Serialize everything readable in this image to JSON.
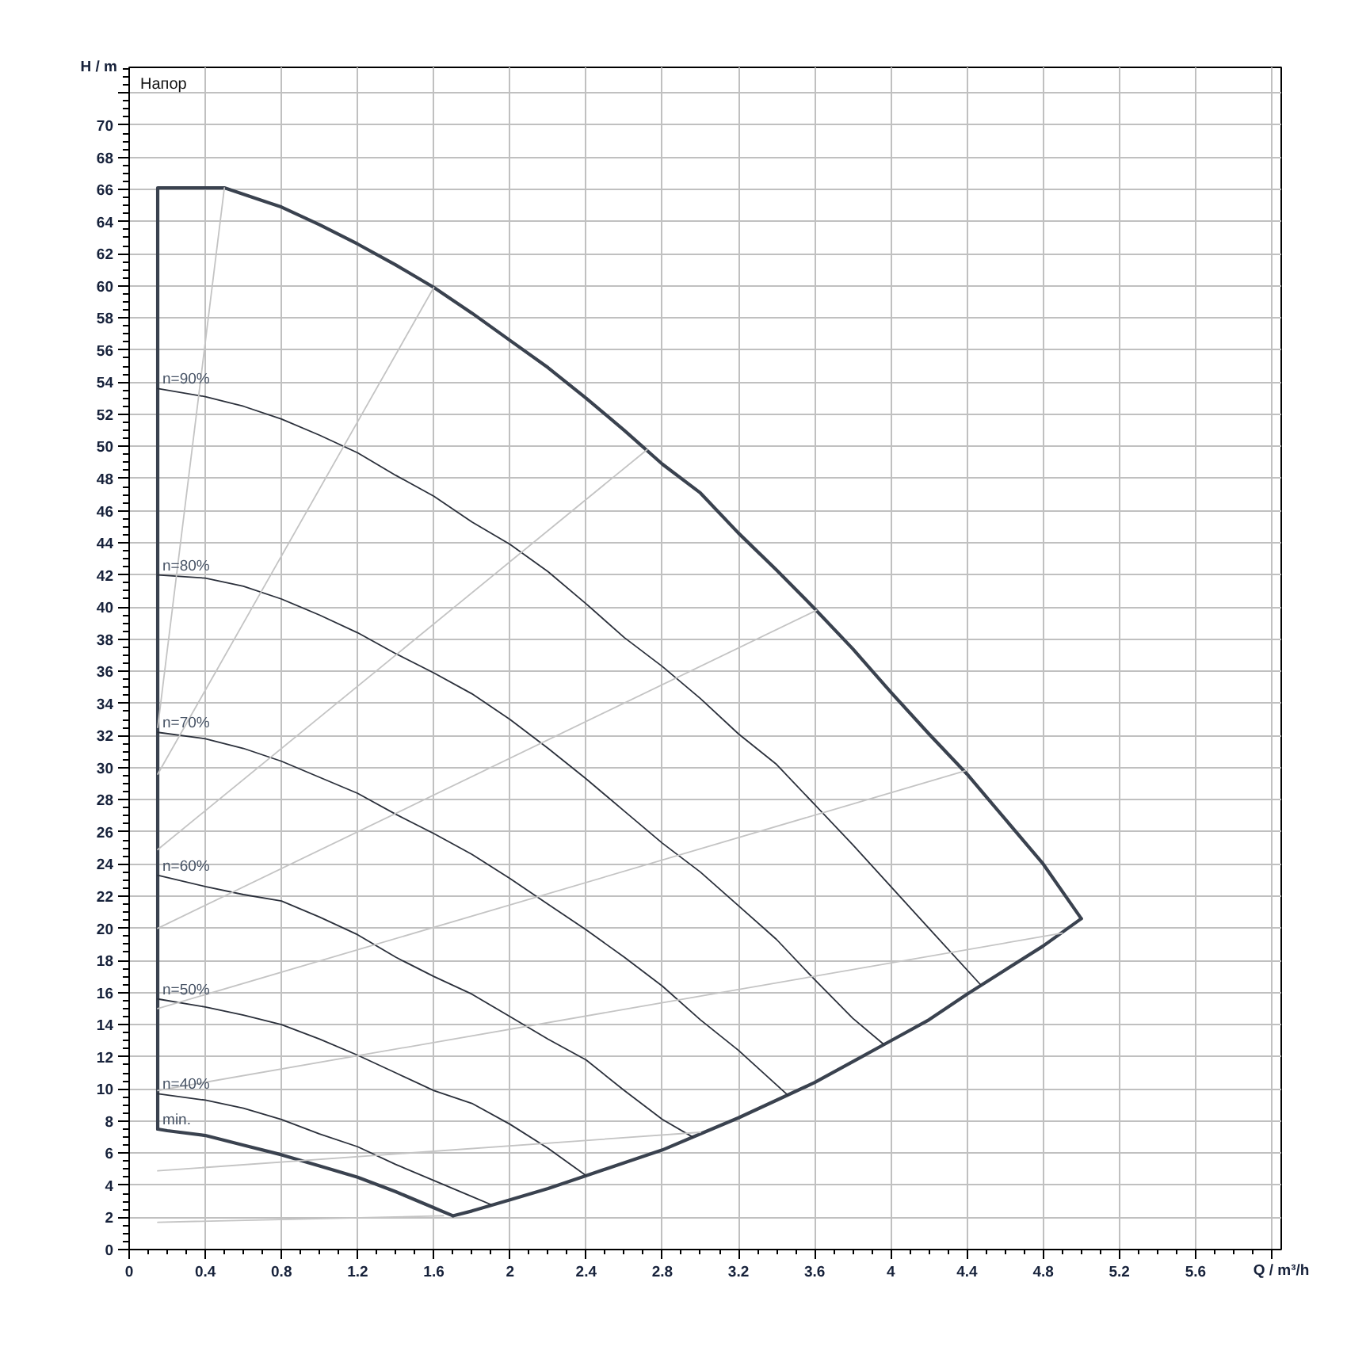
{
  "chart_data": {
    "type": "line",
    "xlabel": "Q / m³/h",
    "ylabel": "H / m",
    "annotations": [
      "Напор"
    ],
    "xlim": [
      0,
      6.05
    ],
    "ylim": [
      0,
      73.6
    ],
    "xticks": [
      0,
      {
        "value": 0.1,
        "label": null
      },
      {
        "value": 0.2,
        "label": null
      },
      {
        "value": 0.3,
        "label": null
      },
      0.4,
      {
        "value": 0.5,
        "label": null
      },
      {
        "value": 0.6,
        "label": null
      },
      {
        "value": 0.7,
        "label": null
      },
      0.8,
      {
        "value": 0.9,
        "label": null
      },
      {
        "value": 1,
        "label": null
      },
      {
        "value": 1.1,
        "label": null
      },
      1.2,
      {
        "value": 1.3,
        "label": null
      },
      {
        "value": 1.4,
        "label": null
      },
      {
        "value": 1.5,
        "label": null
      },
      1.6,
      {
        "value": 1.7,
        "label": null
      },
      {
        "value": 1.8,
        "label": null
      },
      {
        "value": 1.9,
        "label": null
      },
      2,
      {
        "value": 2.1,
        "label": null
      },
      {
        "value": 2.2,
        "label": null
      },
      {
        "value": 2.3,
        "label": null
      },
      2.4,
      {
        "value": 2.5,
        "label": null
      },
      {
        "value": 2.6,
        "label": null
      },
      {
        "value": 2.7,
        "label": null
      },
      2.8,
      {
        "value": 2.9,
        "label": null
      },
      {
        "value": 3,
        "label": null
      },
      {
        "value": 3.1,
        "label": null
      },
      3.2,
      {
        "value": 3.3,
        "label": null
      },
      {
        "value": 3.4,
        "label": null
      },
      {
        "value": 3.5,
        "label": null
      },
      3.6,
      {
        "value": 3.7,
        "label": null
      },
      {
        "value": 3.8,
        "label": null
      },
      {
        "value": 3.9,
        "label": null
      },
      4,
      {
        "value": 4.1,
        "label": null
      },
      {
        "value": 4.2,
        "label": null
      },
      {
        "value": 4.3,
        "label": null
      },
      4.4,
      {
        "value": 4.5,
        "label": null
      },
      {
        "value": 4.6,
        "label": null
      },
      {
        "value": 4.7,
        "label": null
      },
      4.8,
      {
        "value": 4.9,
        "label": null
      },
      {
        "value": 5,
        "label": null
      },
      {
        "value": 5.1,
        "label": null
      },
      5.2,
      {
        "value": 5.3,
        "label": null
      },
      {
        "value": 5.4,
        "label": null
      },
      {
        "value": 5.5,
        "label": null
      },
      5.6,
      {
        "value": 5.7,
        "label": null
      },
      {
        "value": 5.8,
        "label": null
      },
      {
        "value": 5.9,
        "label": null
      },
      {
        "value": 6,
        "label": null
      }
    ],
    "yticks": [
      0,
      {
        "value": 0.5,
        "label": null
      },
      {
        "value": 1,
        "label": null
      },
      {
        "value": 1.5,
        "label": null
      },
      2,
      {
        "value": 2.5,
        "label": null
      },
      {
        "value": 3,
        "label": null
      },
      {
        "value": 3.5,
        "label": null
      },
      4,
      {
        "value": 4.5,
        "label": null
      },
      {
        "value": 5,
        "label": null
      },
      {
        "value": 5.5,
        "label": null
      },
      6,
      {
        "value": 6.5,
        "label": null
      },
      {
        "value": 7,
        "label": null
      },
      {
        "value": 7.5,
        "label": null
      },
      8,
      {
        "value": 8.5,
        "label": null
      },
      {
        "value": 9,
        "label": null
      },
      {
        "value": 9.5,
        "label": null
      },
      10,
      {
        "value": 10.5,
        "label": null
      },
      {
        "value": 11,
        "label": null
      },
      {
        "value": 11.5,
        "label": null
      },
      12,
      {
        "value": 12.5,
        "label": null
      },
      {
        "value": 13,
        "label": null
      },
      {
        "value": 13.5,
        "label": null
      },
      14,
      {
        "value": 14.5,
        "label": null
      },
      {
        "value": 15,
        "label": null
      },
      {
        "value": 15.5,
        "label": null
      },
      16,
      {
        "value": 16.5,
        "label": null
      },
      {
        "value": 17,
        "label": null
      },
      {
        "value": 17.5,
        "label": null
      },
      18,
      {
        "value": 18.5,
        "label": null
      },
      {
        "value": 19,
        "label": null
      },
      {
        "value": 19.5,
        "label": null
      },
      20,
      {
        "value": 20.5,
        "label": null
      },
      {
        "value": 21,
        "label": null
      },
      {
        "value": 21.5,
        "label": null
      },
      22,
      {
        "value": 22.5,
        "label": null
      },
      {
        "value": 23,
        "label": null
      },
      {
        "value": 23.5,
        "label": null
      },
      24,
      {
        "value": 24.5,
        "label": null
      },
      {
        "value": 25,
        "label": null
      },
      {
        "value": 25.5,
        "label": null
      },
      26,
      {
        "value": 26.5,
        "label": null
      },
      {
        "value": 27,
        "label": null
      },
      {
        "value": 27.5,
        "label": null
      },
      28,
      {
        "value": 28.5,
        "label": null
      },
      {
        "value": 29,
        "label": null
      },
      {
        "value": 29.5,
        "label": null
      },
      30,
      {
        "value": 30.5,
        "label": null
      },
      {
        "value": 31,
        "label": null
      },
      {
        "value": 31.5,
        "label": null
      },
      32,
      {
        "value": 32.5,
        "label": null
      },
      {
        "value": 33,
        "label": null
      },
      {
        "value": 33.5,
        "label": null
      },
      34,
      {
        "value": 34.5,
        "label": null
      },
      {
        "value": 35,
        "label": null
      },
      {
        "value": 35.5,
        "label": null
      },
      36,
      {
        "value": 36.5,
        "label": null
      },
      {
        "value": 37,
        "label": null
      },
      {
        "value": 37.5,
        "label": null
      },
      38,
      {
        "value": 38.5,
        "label": null
      },
      {
        "value": 39,
        "label": null
      },
      {
        "value": 39.5,
        "label": null
      },
      40,
      {
        "value": 40.5,
        "label": null
      },
      {
        "value": 41,
        "label": null
      },
      {
        "value": 41.5,
        "label": null
      },
      42,
      {
        "value": 42.5,
        "label": null
      },
      {
        "value": 43,
        "label": null
      },
      {
        "value": 43.5,
        "label": null
      },
      44,
      {
        "value": 44.5,
        "label": null
      },
      {
        "value": 45,
        "label": null
      },
      {
        "value": 45.5,
        "label": null
      },
      46,
      {
        "value": 46.5,
        "label": null
      },
      {
        "value": 47,
        "label": null
      },
      {
        "value": 47.5,
        "label": null
      },
      48,
      {
        "value": 48.5,
        "label": null
      },
      {
        "value": 49,
        "label": null
      },
      {
        "value": 49.5,
        "label": null
      },
      50,
      {
        "value": 50.5,
        "label": null
      },
      {
        "value": 51,
        "label": null
      },
      {
        "value": 51.5,
        "label": null
      },
      52,
      {
        "value": 52.5,
        "label": null
      },
      {
        "value": 53,
        "label": null
      },
      {
        "value": 53.5,
        "label": null
      },
      54,
      {
        "value": 54.5,
        "label": null
      },
      {
        "value": 55,
        "label": null
      },
      {
        "value": 55.5,
        "label": null
      },
      56,
      {
        "value": 56.5,
        "label": null
      },
      {
        "value": 57,
        "label": null
      },
      {
        "value": 57.5,
        "label": null
      },
      58,
      {
        "value": 58.5,
        "label": null
      },
      {
        "value": 59,
        "label": null
      },
      {
        "value": 59.5,
        "label": null
      },
      60,
      {
        "value": 60.5,
        "label": null
      },
      {
        "value": 61,
        "label": null
      },
      {
        "value": 61.5,
        "label": null
      },
      62,
      {
        "value": 62.5,
        "label": null
      },
      {
        "value": 63,
        "label": null
      },
      {
        "value": 63.5,
        "label": null
      },
      64,
      {
        "value": 64.5,
        "label": null
      },
      {
        "value": 65,
        "label": null
      },
      {
        "value": 65.5,
        "label": null
      },
      66,
      {
        "value": 66.5,
        "label": null
      },
      {
        "value": 67,
        "label": null
      },
      {
        "value": 67.5,
        "label": null
      },
      68,
      {
        "value": 68.5,
        "label": null
      },
      {
        "value": 69,
        "label": null
      },
      {
        "value": 69.5,
        "label": null
      },
      70,
      {
        "value": 70.5,
        "label": null
      },
      {
        "value": 71,
        "label": null
      },
      {
        "value": 71.5,
        "label": null
      },
      {
        "value": 72,
        "label": null
      },
      {
        "value": 72.5,
        "label": null
      },
      {
        "value": 73,
        "label": null
      },
      {
        "value": 73.5,
        "label": null
      }
    ],
    "grid": true,
    "legend": false,
    "marker": "none",
    "line_style": "solid",
    "series": [
      {
        "color": "#3a424f",
        "x": [
          0.15,
          0.15,
          0.5,
          0.8,
          1.0,
          1.2,
          1.4,
          1.6,
          1.8,
          2.0,
          2.2,
          2.4,
          2.6,
          2.8,
          3.0,
          3.2,
          3.4,
          3.6,
          3.8,
          4.0,
          4.2,
          4.4,
          4.6,
          4.8,
          5.0
        ],
        "values": [
          7.5,
          66.1,
          66.1,
          64.9,
          63.8,
          62.6,
          61.3,
          59.9,
          58.3,
          56.6,
          54.9,
          53.0,
          51.0,
          48.9,
          47.1,
          44.6,
          42.3,
          39.9,
          37.4,
          34.7,
          32.1,
          29.6,
          26.8,
          24.0,
          20.6
        ]
      },
      {
        "color": "#3a424f",
        "x": [
          1.7,
          1.8,
          2.0,
          2.2,
          2.4,
          2.6,
          2.8,
          3.0,
          3.2,
          3.4,
          3.6,
          3.8,
          4.0,
          4.2,
          4.4,
          4.6,
          4.8,
          5.0
        ],
        "values": [
          2.1,
          2.4,
          3.1,
          3.8,
          4.6,
          5.4,
          6.2,
          7.2,
          8.2,
          9.3,
          10.4,
          11.7,
          13.0,
          14.3,
          15.9,
          17.4,
          18.9,
          20.6
        ]
      },
      {
        "name": "min.",
        "color": "#3a424f",
        "x": [
          0.15,
          0.2,
          0.4,
          0.6,
          0.8,
          1.0,
          1.2,
          1.4,
          1.6,
          1.7
        ],
        "values": [
          7.5,
          7.4,
          7.1,
          6.5,
          5.9,
          5.2,
          4.5,
          3.6,
          2.6,
          2.1
        ]
      },
      {
        "name": "n=90%",
        "color": "#2b303b",
        "x": [
          0.15,
          0.4,
          0.6,
          0.8,
          1.0,
          1.2,
          1.4,
          1.6,
          1.8,
          2.0,
          2.2,
          2.4,
          2.6,
          2.8,
          3.0,
          3.2,
          3.4,
          3.6,
          3.8,
          4.0,
          4.2,
          4.47
        ],
        "values": [
          53.6,
          53.1,
          52.5,
          51.7,
          50.7,
          49.6,
          48.2,
          46.9,
          45.3,
          43.9,
          42.2,
          40.2,
          38.1,
          36.3,
          34.3,
          32.1,
          30.2,
          27.7,
          25.2,
          22.6,
          20.0,
          16.5
        ]
      },
      {
        "name": "n=80%",
        "color": "#2b303b",
        "x": [
          0.15,
          0.4,
          0.6,
          0.8,
          1.0,
          1.2,
          1.4,
          1.6,
          1.8,
          2.0,
          2.2,
          2.4,
          2.6,
          2.8,
          3.0,
          3.2,
          3.4,
          3.6,
          3.8,
          3.96
        ],
        "values": [
          42.0,
          41.8,
          41.3,
          40.5,
          39.5,
          38.4,
          37.1,
          35.9,
          34.6,
          33.0,
          31.2,
          29.3,
          27.3,
          25.3,
          23.5,
          21.4,
          19.3,
          16.8,
          14.4,
          12.8
        ]
      },
      {
        "name": "n=70%",
        "color": "#2b303b",
        "x": [
          0.15,
          0.4,
          0.6,
          0.8,
          1.0,
          1.2,
          1.4,
          1.6,
          1.8,
          2.0,
          2.2,
          2.4,
          2.6,
          2.8,
          3.0,
          3.2,
          3.46
        ],
        "values": [
          32.2,
          31.8,
          31.2,
          30.4,
          29.4,
          28.4,
          27.1,
          25.9,
          24.6,
          23.1,
          21.5,
          19.9,
          18.2,
          16.4,
          14.3,
          12.4,
          9.6
        ]
      },
      {
        "name": "n=60%",
        "color": "#2b303b",
        "x": [
          0.15,
          0.4,
          0.6,
          0.8,
          1.0,
          1.2,
          1.4,
          1.6,
          1.8,
          2.0,
          2.2,
          2.4,
          2.6,
          2.8,
          2.96
        ],
        "values": [
          23.3,
          22.6,
          22.1,
          21.7,
          20.7,
          19.6,
          18.2,
          17.0,
          15.9,
          14.5,
          13.1,
          11.8,
          9.9,
          8.1,
          7.0
        ]
      },
      {
        "name": "n=50%",
        "color": "#2b303b",
        "x": [
          0.15,
          0.4,
          0.6,
          0.8,
          1.0,
          1.2,
          1.4,
          1.6,
          1.8,
          2.0,
          2.2,
          2.4
        ],
        "values": [
          15.6,
          15.1,
          14.6,
          14.0,
          13.1,
          12.1,
          11.0,
          9.9,
          9.1,
          7.8,
          6.3,
          4.6
        ]
      },
      {
        "name": "n=40%",
        "color": "#2b303b",
        "x": [
          0.15,
          0.4,
          0.6,
          0.8,
          1.0,
          1.2,
          1.4,
          1.6,
          1.8,
          1.9
        ],
        "values": [
          9.7,
          9.3,
          8.8,
          8.1,
          7.2,
          6.4,
          5.3,
          4.3,
          3.3,
          2.8
        ]
      },
      {
        "color": "#c4c4c4",
        "x": [
          0.15,
          0.5
        ],
        "values": [
          32.5,
          66.1
        ]
      },
      {
        "color": "#c4c4c4",
        "x": [
          0.15,
          1.6
        ],
        "values": [
          29.6,
          59.9
        ]
      },
      {
        "color": "#c4c4c4",
        "x": [
          0.15,
          2.72
        ],
        "values": [
          24.9,
          49.8
        ]
      },
      {
        "color": "#c4c4c4",
        "x": [
          0.15,
          3.61
        ],
        "values": [
          20.0,
          39.8
        ]
      },
      {
        "color": "#c4c4c4",
        "x": [
          0.15,
          4.39
        ],
        "values": [
          15.0,
          29.8
        ]
      },
      {
        "color": "#c4c4c4",
        "x": [
          0.15,
          4.9
        ],
        "values": [
          9.9,
          19.7
        ]
      },
      {
        "color": "#c4c4c4",
        "x": [
          0.15,
          3.0
        ],
        "values": [
          4.9,
          7.3
        ]
      },
      {
        "color": "#c4c4c4",
        "x": [
          0.15,
          1.65
        ],
        "values": [
          1.7,
          2.1
        ]
      }
    ]
  }
}
